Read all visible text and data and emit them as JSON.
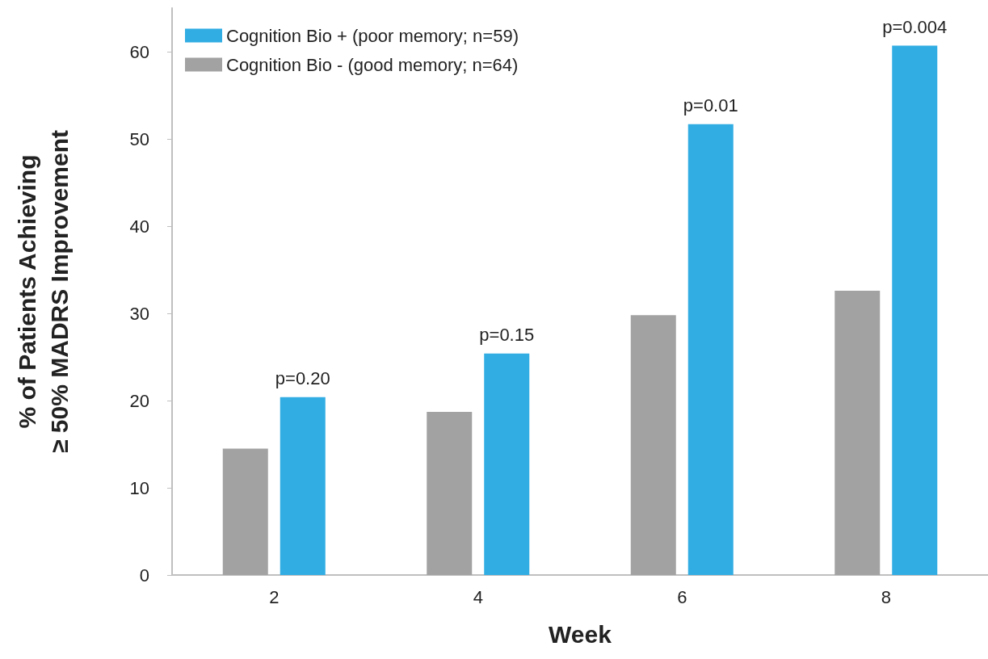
{
  "chart_data": {
    "type": "bar",
    "xlabel": "Week",
    "ylabel": "% of Patients Achieving\n≥ 50% MADRS Improvement",
    "categories": [
      "2",
      "4",
      "6",
      "8"
    ],
    "series": [
      {
        "name": "Cognition Bio + (poor memory; n=59)",
        "color": "#31ade3",
        "values": [
          20.4,
          25.4,
          51.7,
          60.7
        ]
      },
      {
        "name": "Cognition Bio - (good memory; n=64)",
        "color": "#a2a2a2",
        "values": [
          14.5,
          18.7,
          29.8,
          32.6
        ]
      }
    ],
    "ylim": [
      0,
      65
    ],
    "yticks": [
      0,
      10,
      20,
      30,
      40,
      50,
      60
    ],
    "grid": false,
    "legend": "top left",
    "annotations": [
      "p=0.20",
      "p=0.15",
      "p=0.01",
      "p=0.004"
    ]
  }
}
